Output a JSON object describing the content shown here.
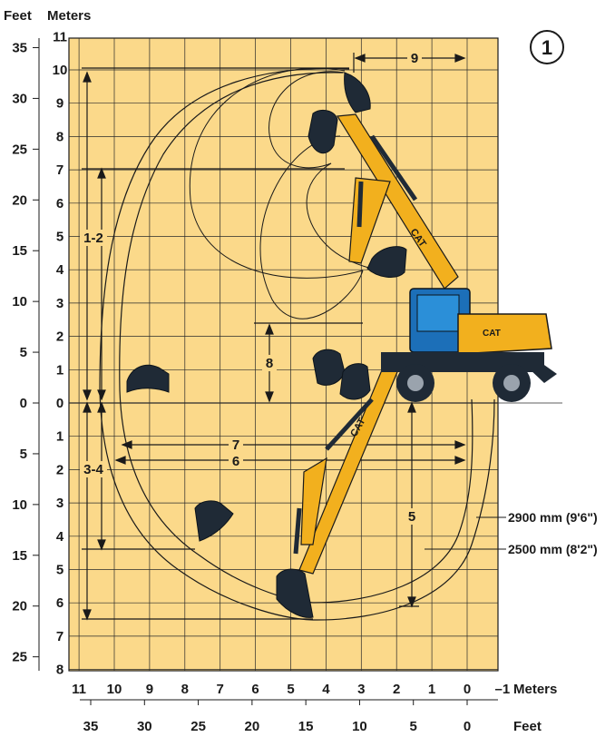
{
  "header": {
    "feet_label": "Feet",
    "meters_label": "Meters"
  },
  "badge": "1",
  "left_feet_ticks": [
    "35",
    "30",
    "25",
    "20",
    "15",
    "10",
    "5",
    "0",
    "5",
    "10",
    "15",
    "20",
    "25"
  ],
  "meters_ticks_above": [
    "11",
    "10",
    "9",
    "8",
    "7",
    "6",
    "5",
    "4",
    "3",
    "2",
    "1",
    "0"
  ],
  "meters_ticks_below": [
    "1",
    "2",
    "3",
    "4",
    "5",
    "6",
    "7",
    "8"
  ],
  "bottom_meters_ticks": [
    "11",
    "10",
    "9",
    "8",
    "7",
    "6",
    "5",
    "4",
    "3",
    "2",
    "1",
    "0",
    "–1"
  ],
  "bottom_meters_unit": "Meters",
  "bottom_feet_ticks": [
    "35",
    "30",
    "25",
    "20",
    "15",
    "10",
    "5",
    "0"
  ],
  "bottom_feet_unit": "Feet",
  "dimension_labels": {
    "d1_2": "1-2",
    "d3_4": "3-4",
    "d5": "5",
    "d6": "6",
    "d7": "7",
    "d8": "8",
    "d9": "9"
  },
  "boom_labels": {
    "long": "2900 mm (9'6\")",
    "short": "2500 mm (8'2\")"
  },
  "brand": "CAT",
  "colors": {
    "background": "#fbd98a",
    "grid": "#222222",
    "machine_yellow": "#f2b01e",
    "cab_blue": "#1c6fb8",
    "bucket": "#1f2a36"
  }
}
